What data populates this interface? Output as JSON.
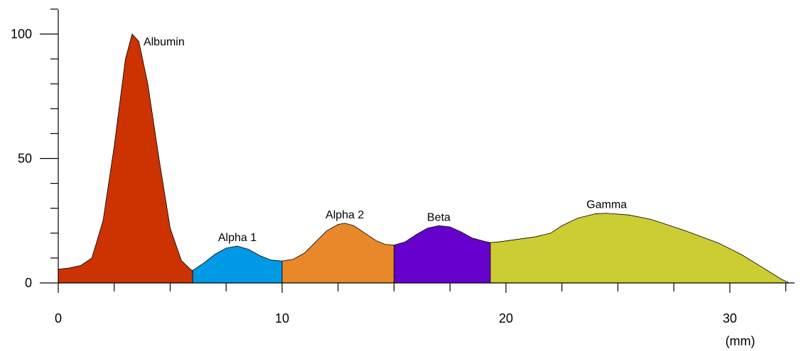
{
  "chart_data": {
    "type": "area",
    "title": "",
    "xlabel": "",
    "ylabel": "",
    "x_unit": "(mm)",
    "xlim": [
      0,
      33
    ],
    "ylim": [
      0,
      110
    ],
    "x_major_ticks": [
      0,
      10,
      20,
      30
    ],
    "x_tick_labels": [
      "0",
      "10",
      "20",
      "30"
    ],
    "x_minor_step": 2.5,
    "y_major_ticks": [
      0,
      50,
      100
    ],
    "y_tick_labels": [
      "0",
      "50",
      "100"
    ],
    "y_minor_step": 10,
    "grid": false,
    "legend": "none",
    "profile": [
      [
        0,
        5.5
      ],
      [
        0.5,
        6
      ],
      [
        1,
        7
      ],
      [
        1.5,
        10
      ],
      [
        2,
        25
      ],
      [
        2.5,
        55
      ],
      [
        3,
        90
      ],
      [
        3.3,
        100
      ],
      [
        3.6,
        97
      ],
      [
        4,
        80
      ],
      [
        4.5,
        50
      ],
      [
        5,
        22
      ],
      [
        5.5,
        9
      ],
      [
        5.9,
        5.5
      ],
      [
        6,
        5
      ],
      [
        6.5,
        8
      ],
      [
        7,
        11.5
      ],
      [
        7.5,
        14
      ],
      [
        8,
        14.8
      ],
      [
        8.5,
        13.5
      ],
      [
        9,
        11
      ],
      [
        9.5,
        9.2
      ],
      [
        10,
        8.8
      ],
      [
        10.5,
        9.5
      ],
      [
        11,
        12
      ],
      [
        11.5,
        16.5
      ],
      [
        12,
        21
      ],
      [
        12.5,
        23.5
      ],
      [
        12.8,
        24
      ],
      [
        13.2,
        23
      ],
      [
        13.7,
        20
      ],
      [
        14.2,
        17
      ],
      [
        14.6,
        15.5
      ],
      [
        15,
        15.2
      ],
      [
        15.5,
        16.5
      ],
      [
        16,
        19.5
      ],
      [
        16.5,
        22
      ],
      [
        17,
        23
      ],
      [
        17.5,
        22.5
      ],
      [
        18,
        20.5
      ],
      [
        18.5,
        18
      ],
      [
        19,
        16.8
      ],
      [
        19.3,
        16.2
      ],
      [
        19.7,
        16.5
      ],
      [
        20.5,
        17.5
      ],
      [
        21.3,
        18.5
      ],
      [
        22,
        20
      ],
      [
        22.5,
        23
      ],
      [
        23.2,
        26
      ],
      [
        24,
        27.8
      ],
      [
        24.5,
        28
      ],
      [
        25.5,
        27.3
      ],
      [
        26.5,
        25.5
      ],
      [
        28,
        21
      ],
      [
        29.5,
        16
      ],
      [
        30.5,
        11.5
      ],
      [
        31.5,
        6
      ],
      [
        32.3,
        1.5
      ],
      [
        32.6,
        0.3
      ]
    ],
    "bands": [
      {
        "name": "Albumin",
        "from": 0,
        "to": 6,
        "color": "#cc3300",
        "peak_x": 3.3,
        "peak_y": 100
      },
      {
        "name": "Alpha 1",
        "from": 6,
        "to": 10,
        "color": "#0099e6",
        "peak_x": 8,
        "peak_y": 14.8
      },
      {
        "name": "Alpha 2",
        "from": 10,
        "to": 15,
        "color": "#e8882a",
        "peak_x": 12.8,
        "peak_y": 24
      },
      {
        "name": "Beta",
        "from": 15,
        "to": 19.3,
        "color": "#6600cc",
        "peak_x": 17,
        "peak_y": 23
      },
      {
        "name": "Gamma",
        "from": 19.3,
        "to": 32.6,
        "color": "#cccc33",
        "peak_x": 24.5,
        "peak_y": 28
      }
    ]
  }
}
